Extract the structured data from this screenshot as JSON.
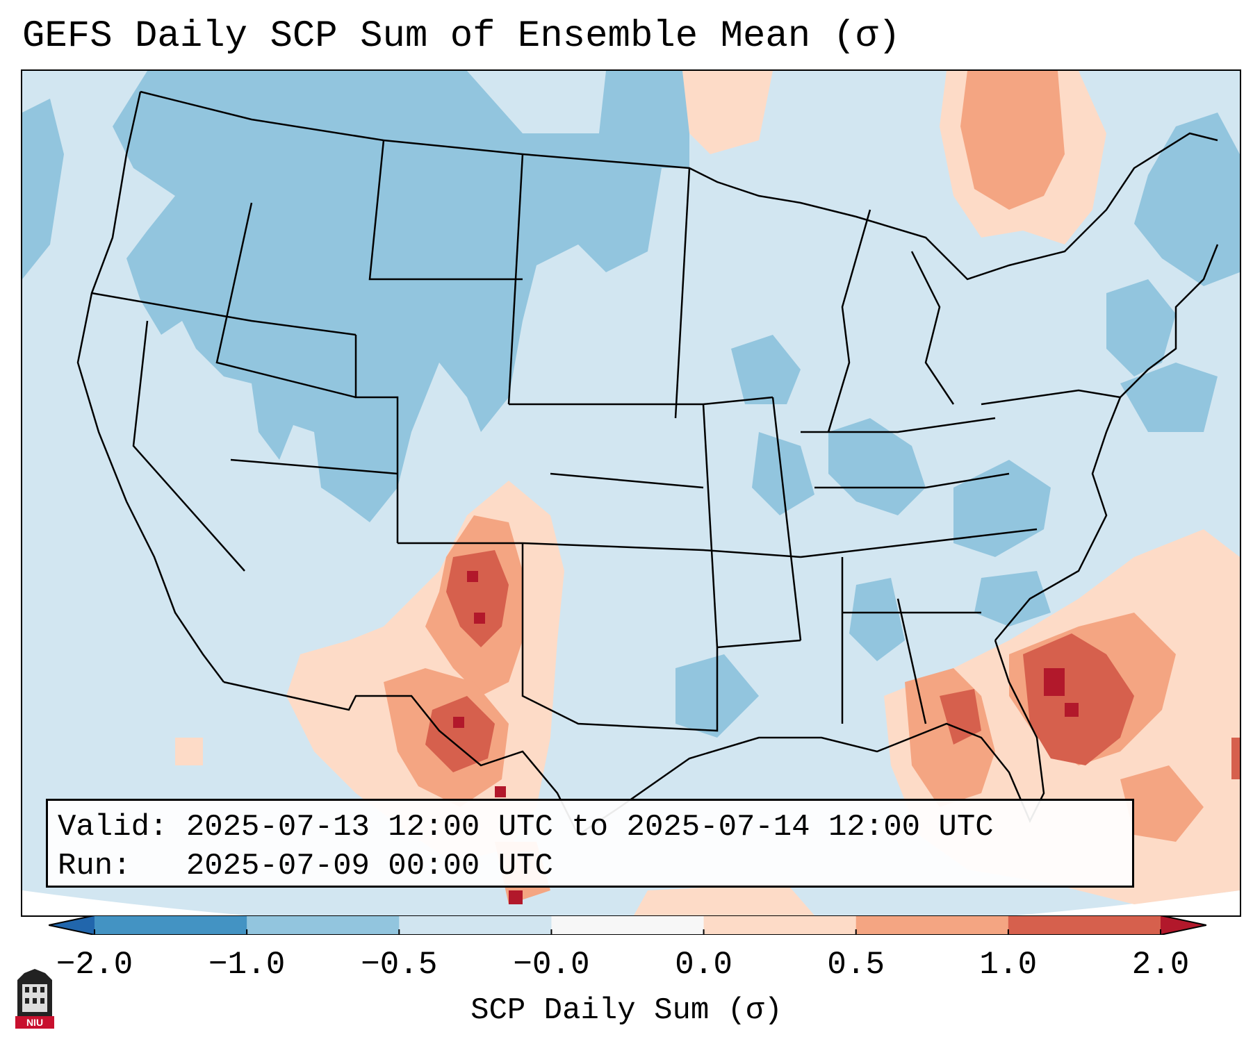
{
  "title": "GEFS Daily SCP Sum of Ensemble Mean (σ)",
  "info": {
    "valid_label": "Valid:",
    "valid_text": "2025-07-13 12:00 UTC to 2025-07-14 12:00 UTC",
    "run_label": "Run:",
    "run_text": "2025-07-09 00:00 UTC"
  },
  "colorbar": {
    "label": "SCP Daily Sum (σ)",
    "ticks": [
      "−2.0",
      "−1.0",
      "−0.5",
      "−0.0",
      "0.0",
      "0.5",
      "1.0",
      "2.0"
    ],
    "bins": [
      {
        "range": "<−2.0",
        "color": "#2166ac"
      },
      {
        "range": "−2.0 to −1.0",
        "color": "#4393c3"
      },
      {
        "range": "−1.0 to −0.5",
        "color": "#92c5de"
      },
      {
        "range": "−0.5 to −0.0",
        "color": "#d1e5f0"
      },
      {
        "range": "−0.0 to 0.0",
        "color": "#f7f7f7"
      },
      {
        "range": "0.0 to 0.5",
        "color": "#fddbc7"
      },
      {
        "range": "0.5 to 1.0",
        "color": "#f4a582"
      },
      {
        "range": "1.0 to 2.0",
        "color": "#d6604d"
      },
      {
        "range": ">2.0",
        "color": "#b2182b"
      }
    ]
  },
  "logo": {
    "text": "NIU",
    "color": "#c8102e"
  },
  "map": {
    "background_color": "#d2e6f1",
    "region": "Contiguous United States, southern Canada, northern Mexico, Gulf of Mexico and Caribbean",
    "features": [
      {
        "name": "SW US / N Mexico positive anomaly",
        "color": "#f4a582"
      },
      {
        "name": "Florida / SE Atlantic positive anomaly",
        "color": "#d6604d"
      },
      {
        "name": "Quebec / Ontario positive anomaly",
        "color": "#f4a582"
      },
      {
        "name": "Northern Plains / Rockies negative anomaly",
        "color": "#92c5de"
      }
    ]
  }
}
